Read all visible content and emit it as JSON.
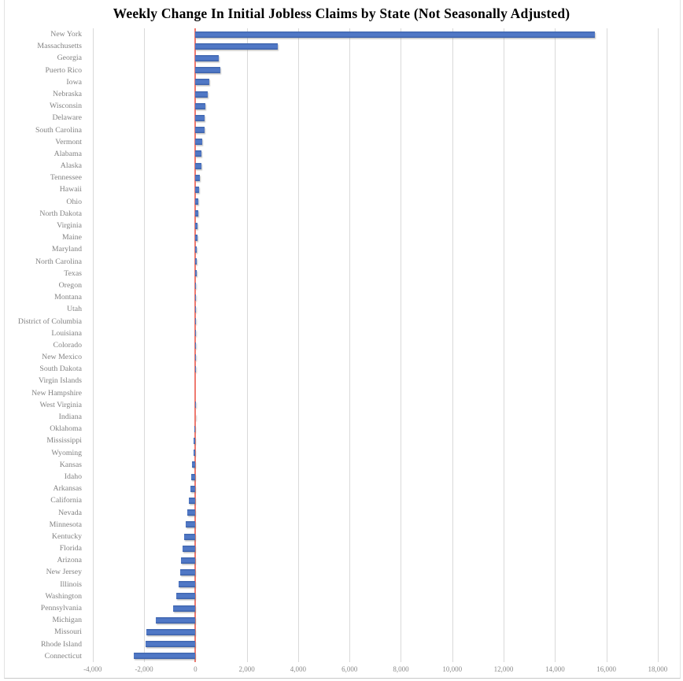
{
  "chart": {
    "title": "Weekly Change In Initial Jobless Claims by State (Not Seasonally Adjusted)"
  },
  "colors": {
    "bar": "#4472c4",
    "zero_line": "#ee7a70",
    "gridline": "#d9d9d9",
    "label_text": "#828282",
    "tick_text": "#8a8a8a",
    "title_text": "#000000"
  },
  "chart_data": {
    "type": "bar",
    "orientation": "horizontal",
    "title": "Weekly Change In Initial Jobless Claims by State (Not Seasonally Adjusted)",
    "xlabel": "",
    "ylabel": "",
    "xlim": [
      -4300,
      18800
    ],
    "grid": "vertical-only",
    "legend": "none",
    "zero_line_value": 0,
    "categories": [
      "New York",
      "Massachusetts",
      "Georgia",
      "Puerto Rico",
      "Iowa",
      "Nebraska",
      "Wisconsin",
      "Delaware",
      "South Carolina",
      "Vermont",
      "Alabama",
      "Alaska",
      "Tennessee",
      "Hawaii",
      "Ohio",
      "North Dakota",
      "Virginia",
      "Maine",
      "Maryland",
      "North Carolina",
      "Texas",
      "Oregon",
      "Montana",
      "Utah",
      "District of Columbia",
      "Louisiana",
      "Colorado",
      "New Mexico",
      "South Dakota",
      "Virgin Islands",
      "New Hampshire",
      "West Virginia",
      "Indiana",
      "Oklahoma",
      "Mississippi",
      "Wyoming",
      "Kansas",
      "Idaho",
      "Arkansas",
      "California",
      "Nevada",
      "Minnesota",
      "Kentucky",
      "Florida",
      "Arizona",
      "New Jersey",
      "Illinois",
      "Washington",
      "Pennsylvania",
      "Michigan",
      "Missouri",
      "Rhode Island",
      "Connecticut"
    ],
    "values": [
      15550,
      3200,
      900,
      970,
      540,
      470,
      400,
      370,
      350,
      250,
      230,
      220,
      170,
      130,
      115,
      100,
      90,
      75,
      60,
      50,
      40,
      35,
      25,
      20,
      15,
      10,
      8,
      5,
      3,
      0,
      0,
      -5,
      -25,
      -45,
      -65,
      -85,
      -125,
      -165,
      -205,
      -255,
      -330,
      -390,
      -430,
      -490,
      -555,
      -600,
      -655,
      -740,
      -860,
      -1530,
      -1900,
      -1955,
      -2390
    ],
    "x_ticks": [
      {
        "value": -4000,
        "label": "-4,000"
      },
      {
        "value": -2000,
        "label": "-2,000"
      },
      {
        "value": 0,
        "label": "0"
      },
      {
        "value": 2000,
        "label": "2,000"
      },
      {
        "value": 4000,
        "label": "4,000"
      },
      {
        "value": 6000,
        "label": "6,000"
      },
      {
        "value": 8000,
        "label": "8,000"
      },
      {
        "value": 10000,
        "label": "10,000"
      },
      {
        "value": 12000,
        "label": "12,000"
      },
      {
        "value": 14000,
        "label": "14,000"
      },
      {
        "value": 16000,
        "label": "16,000"
      },
      {
        "value": 18000,
        "label": "18,000"
      }
    ]
  }
}
